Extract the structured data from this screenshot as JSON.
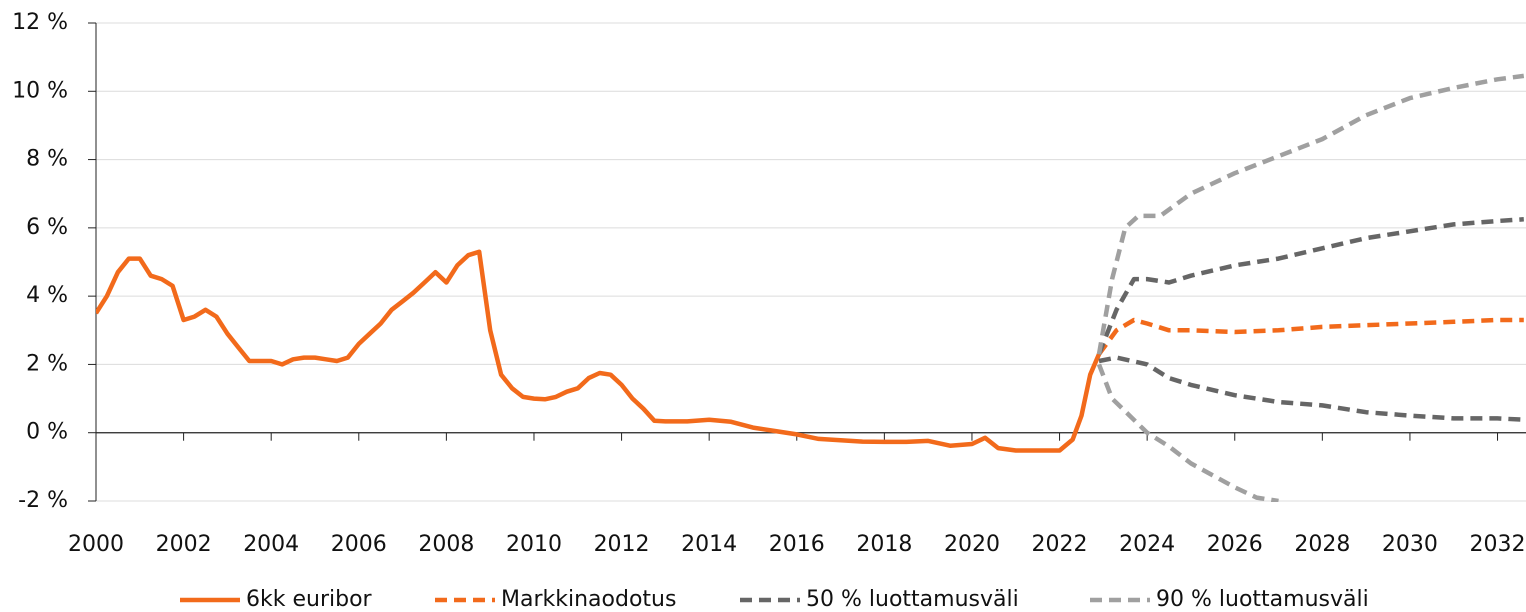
{
  "chart_data": {
    "type": "line",
    "xlim": [
      2000,
      2032.65
    ],
    "xticks": [
      2000,
      2002,
      2004,
      2006,
      2008,
      2010,
      2012,
      2014,
      2016,
      2018,
      2020,
      2022,
      2024,
      2026,
      2028,
      2030,
      2032
    ],
    "ylim": [
      -2,
      12
    ],
    "yticks": [
      {
        "value": -2,
        "label": "-2 %"
      },
      {
        "value": 0,
        "label": "0 %"
      },
      {
        "value": 2,
        "label": "2 %"
      },
      {
        "value": 4,
        "label": "4 %"
      },
      {
        "value": 6,
        "label": "6 %"
      },
      {
        "value": 8,
        "label": "8 %"
      },
      {
        "value": 10,
        "label": "10 %"
      },
      {
        "value": 12,
        "label": "12 %"
      }
    ],
    "grid": true,
    "legend": "bottom",
    "series": [
      {
        "name": "6kk euribor",
        "color": "#f26a1b",
        "style": "solid",
        "x": [
          2000.0,
          2000.25,
          2000.5,
          2000.75,
          2001.0,
          2001.25,
          2001.5,
          2001.75,
          2002.0,
          2002.25,
          2002.5,
          2002.75,
          2003.0,
          2003.25,
          2003.5,
          2003.75,
          2004.0,
          2004.25,
          2004.5,
          2004.75,
          2005.0,
          2005.25,
          2005.5,
          2005.75,
          2006.0,
          2006.25,
          2006.5,
          2006.75,
          2007.0,
          2007.25,
          2007.5,
          2007.75,
          2008.0,
          2008.25,
          2008.5,
          2008.75,
          2009.0,
          2009.25,
          2009.5,
          2009.75,
          2010.0,
          2010.25,
          2010.5,
          2010.75,
          2011.0,
          2011.25,
          2011.5,
          2011.75,
          2012.0,
          2012.25,
          2012.5,
          2012.75,
          2013.0,
          2013.5,
          2014.0,
          2014.5,
          2015.0,
          2015.5,
          2016.0,
          2016.5,
          2017.0,
          2017.5,
          2018.0,
          2018.5,
          2019.0,
          2019.5,
          2020.0,
          2020.3,
          2020.6,
          2021.0,
          2021.5,
          2022.0,
          2022.3,
          2022.5,
          2022.7,
          2022.9
        ],
        "values": [
          3.5,
          4.0,
          4.7,
          5.1,
          5.1,
          4.6,
          4.5,
          4.3,
          3.3,
          3.4,
          3.6,
          3.4,
          2.9,
          2.5,
          2.1,
          2.1,
          2.1,
          2.0,
          2.15,
          2.2,
          2.2,
          2.15,
          2.1,
          2.2,
          2.6,
          2.9,
          3.2,
          3.6,
          3.85,
          4.1,
          4.4,
          4.7,
          4.4,
          4.9,
          5.2,
          5.3,
          3.0,
          1.7,
          1.3,
          1.05,
          1.0,
          0.98,
          1.05,
          1.2,
          1.3,
          1.6,
          1.75,
          1.7,
          1.4,
          1.0,
          0.7,
          0.35,
          0.33,
          0.33,
          0.38,
          0.32,
          0.15,
          0.05,
          -0.05,
          -0.18,
          -0.22,
          -0.26,
          -0.27,
          -0.27,
          -0.24,
          -0.38,
          -0.33,
          -0.15,
          -0.45,
          -0.52,
          -0.52,
          -0.52,
          -0.2,
          0.5,
          1.7,
          2.3
        ]
      },
      {
        "name": "Markkinaodotus",
        "color": "#f26a1b",
        "style": "dashed",
        "x": [
          2022.9,
          2023.3,
          2023.7,
          2024.0,
          2024.5,
          2025,
          2026,
          2027,
          2028,
          2029,
          2030,
          2031,
          2032,
          2032.6
        ],
        "values": [
          2.3,
          3.0,
          3.3,
          3.2,
          3.0,
          3.0,
          2.95,
          3.0,
          3.1,
          3.15,
          3.2,
          3.25,
          3.3,
          3.3
        ]
      },
      {
        "name": "50 % luottamusväli",
        "color": "#666666",
        "style": "dashed",
        "x": [
          2022.9,
          2023.3,
          2023.7,
          2024,
          2024.5,
          2025,
          2026,
          2027,
          2028,
          2029,
          2030,
          2031,
          2032,
          2032.6
        ],
        "values": [
          2.3,
          3.6,
          4.5,
          4.5,
          4.4,
          4.6,
          4.9,
          5.1,
          5.4,
          5.7,
          5.9,
          6.1,
          6.2,
          6.25
        ]
      },
      {
        "name": null,
        "color": "#666666",
        "style": "dashed",
        "x": [
          2022.9,
          2023.3,
          2024,
          2024.5,
          2025,
          2026,
          2027,
          2028,
          2029,
          2030,
          2031,
          2032,
          2032.6
        ],
        "values": [
          2.1,
          2.2,
          2.0,
          1.6,
          1.4,
          1.1,
          0.9,
          0.8,
          0.6,
          0.5,
          0.42,
          0.42,
          0.38
        ]
      },
      {
        "name": "90 % luottamusväli",
        "color": "#a0a0a0",
        "style": "dashed",
        "x": [
          2022.9,
          2023.2,
          2023.5,
          2023.8,
          2024.3,
          2025,
          2026,
          2027,
          2028,
          2029,
          2030,
          2031,
          2032,
          2032.6
        ],
        "values": [
          2.3,
          4.5,
          6.0,
          6.35,
          6.35,
          7.0,
          7.6,
          8.1,
          8.6,
          9.3,
          9.8,
          10.1,
          10.35,
          10.45
        ]
      },
      {
        "name": null,
        "color": "#a0a0a0",
        "style": "dashed",
        "x": [
          2022.9,
          2023.2,
          2023.6,
          2024,
          2024.5,
          2025,
          2026,
          2026.5,
          2027
        ],
        "values": [
          2.0,
          1.0,
          0.5,
          0.0,
          -0.4,
          -0.9,
          -1.6,
          -1.9,
          -2.0
        ]
      }
    ]
  }
}
